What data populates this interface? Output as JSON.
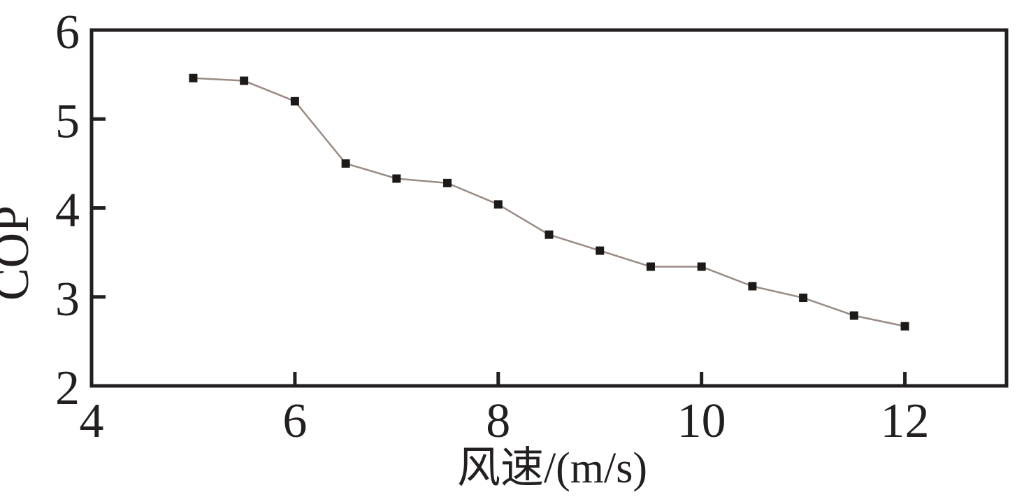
{
  "chart_data": {
    "type": "line",
    "title": "",
    "xlabel": "风速/(m/s)",
    "ylabel": "COP",
    "x": [
      5.0,
      5.5,
      6.0,
      6.5,
      7.0,
      7.5,
      8.0,
      8.5,
      9.0,
      9.5,
      10.0,
      10.5,
      11.0,
      11.5,
      12.0
    ],
    "y": [
      5.46,
      5.43,
      5.2,
      4.5,
      4.33,
      4.28,
      4.04,
      3.7,
      3.52,
      3.34,
      3.34,
      3.12,
      2.99,
      2.79,
      2.67
    ],
    "xlim": [
      4,
      13
    ],
    "ylim": [
      2,
      6
    ],
    "x_tick_marks": [
      6,
      8,
      10,
      12
    ],
    "x_tick_labels": [
      "4",
      "6",
      "8",
      "10",
      "12"
    ],
    "x_tick_label_positions": [
      4,
      6,
      8,
      10,
      12
    ],
    "y_tick_marks": [
      3,
      4,
      5
    ],
    "y_tick_labels": [
      "2",
      "3",
      "4",
      "5",
      "6"
    ],
    "y_tick_label_positions": [
      2,
      3,
      4,
      5,
      6
    ],
    "grid": false,
    "legend": null,
    "marker": "square",
    "marker_size": 12,
    "line_width": 2.5,
    "frame_width": 5,
    "tick_length": 20,
    "colors": {
      "line": "#9a8b83",
      "marker": "#1c1a19",
      "axis": "#231f20",
      "text": "#231f20",
      "background": "#ffffff"
    }
  }
}
